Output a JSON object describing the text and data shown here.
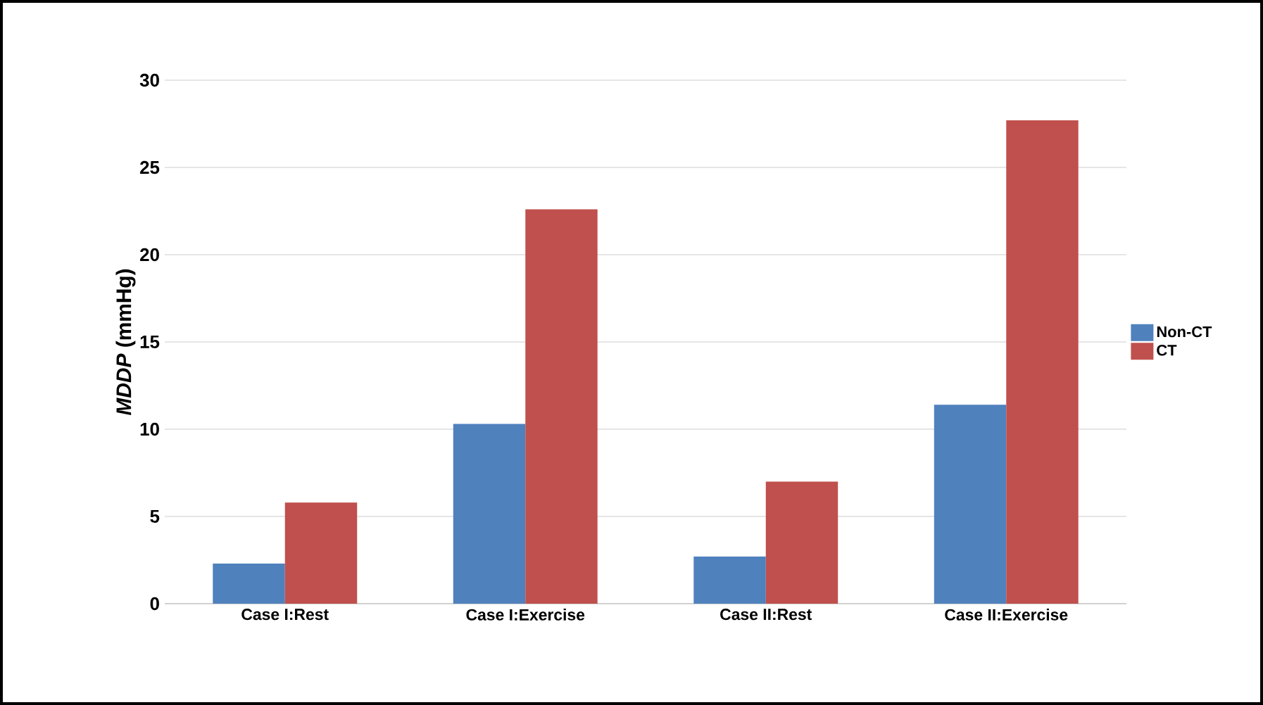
{
  "chart_data": {
    "type": "bar",
    "ylabel": "*MDDP* (mmHg)",
    "categories": [
      "Case I:Rest",
      "Case I:Exercise",
      "Case II:Rest",
      "Case II:Exercise"
    ],
    "series": [
      {
        "name": "Non-CT",
        "color": "#4f81bd",
        "values": [
          2.3,
          10.3,
          2.7,
          11.4
        ]
      },
      {
        "name": "CT",
        "color": "#c0504d",
        "values": [
          5.8,
          22.6,
          7.0,
          27.7
        ]
      }
    ],
    "ylim": [
      0,
      30
    ],
    "yticks": [
      0,
      5,
      10,
      15,
      20,
      25,
      30
    ],
    "grid": "y",
    "legend": "right"
  }
}
